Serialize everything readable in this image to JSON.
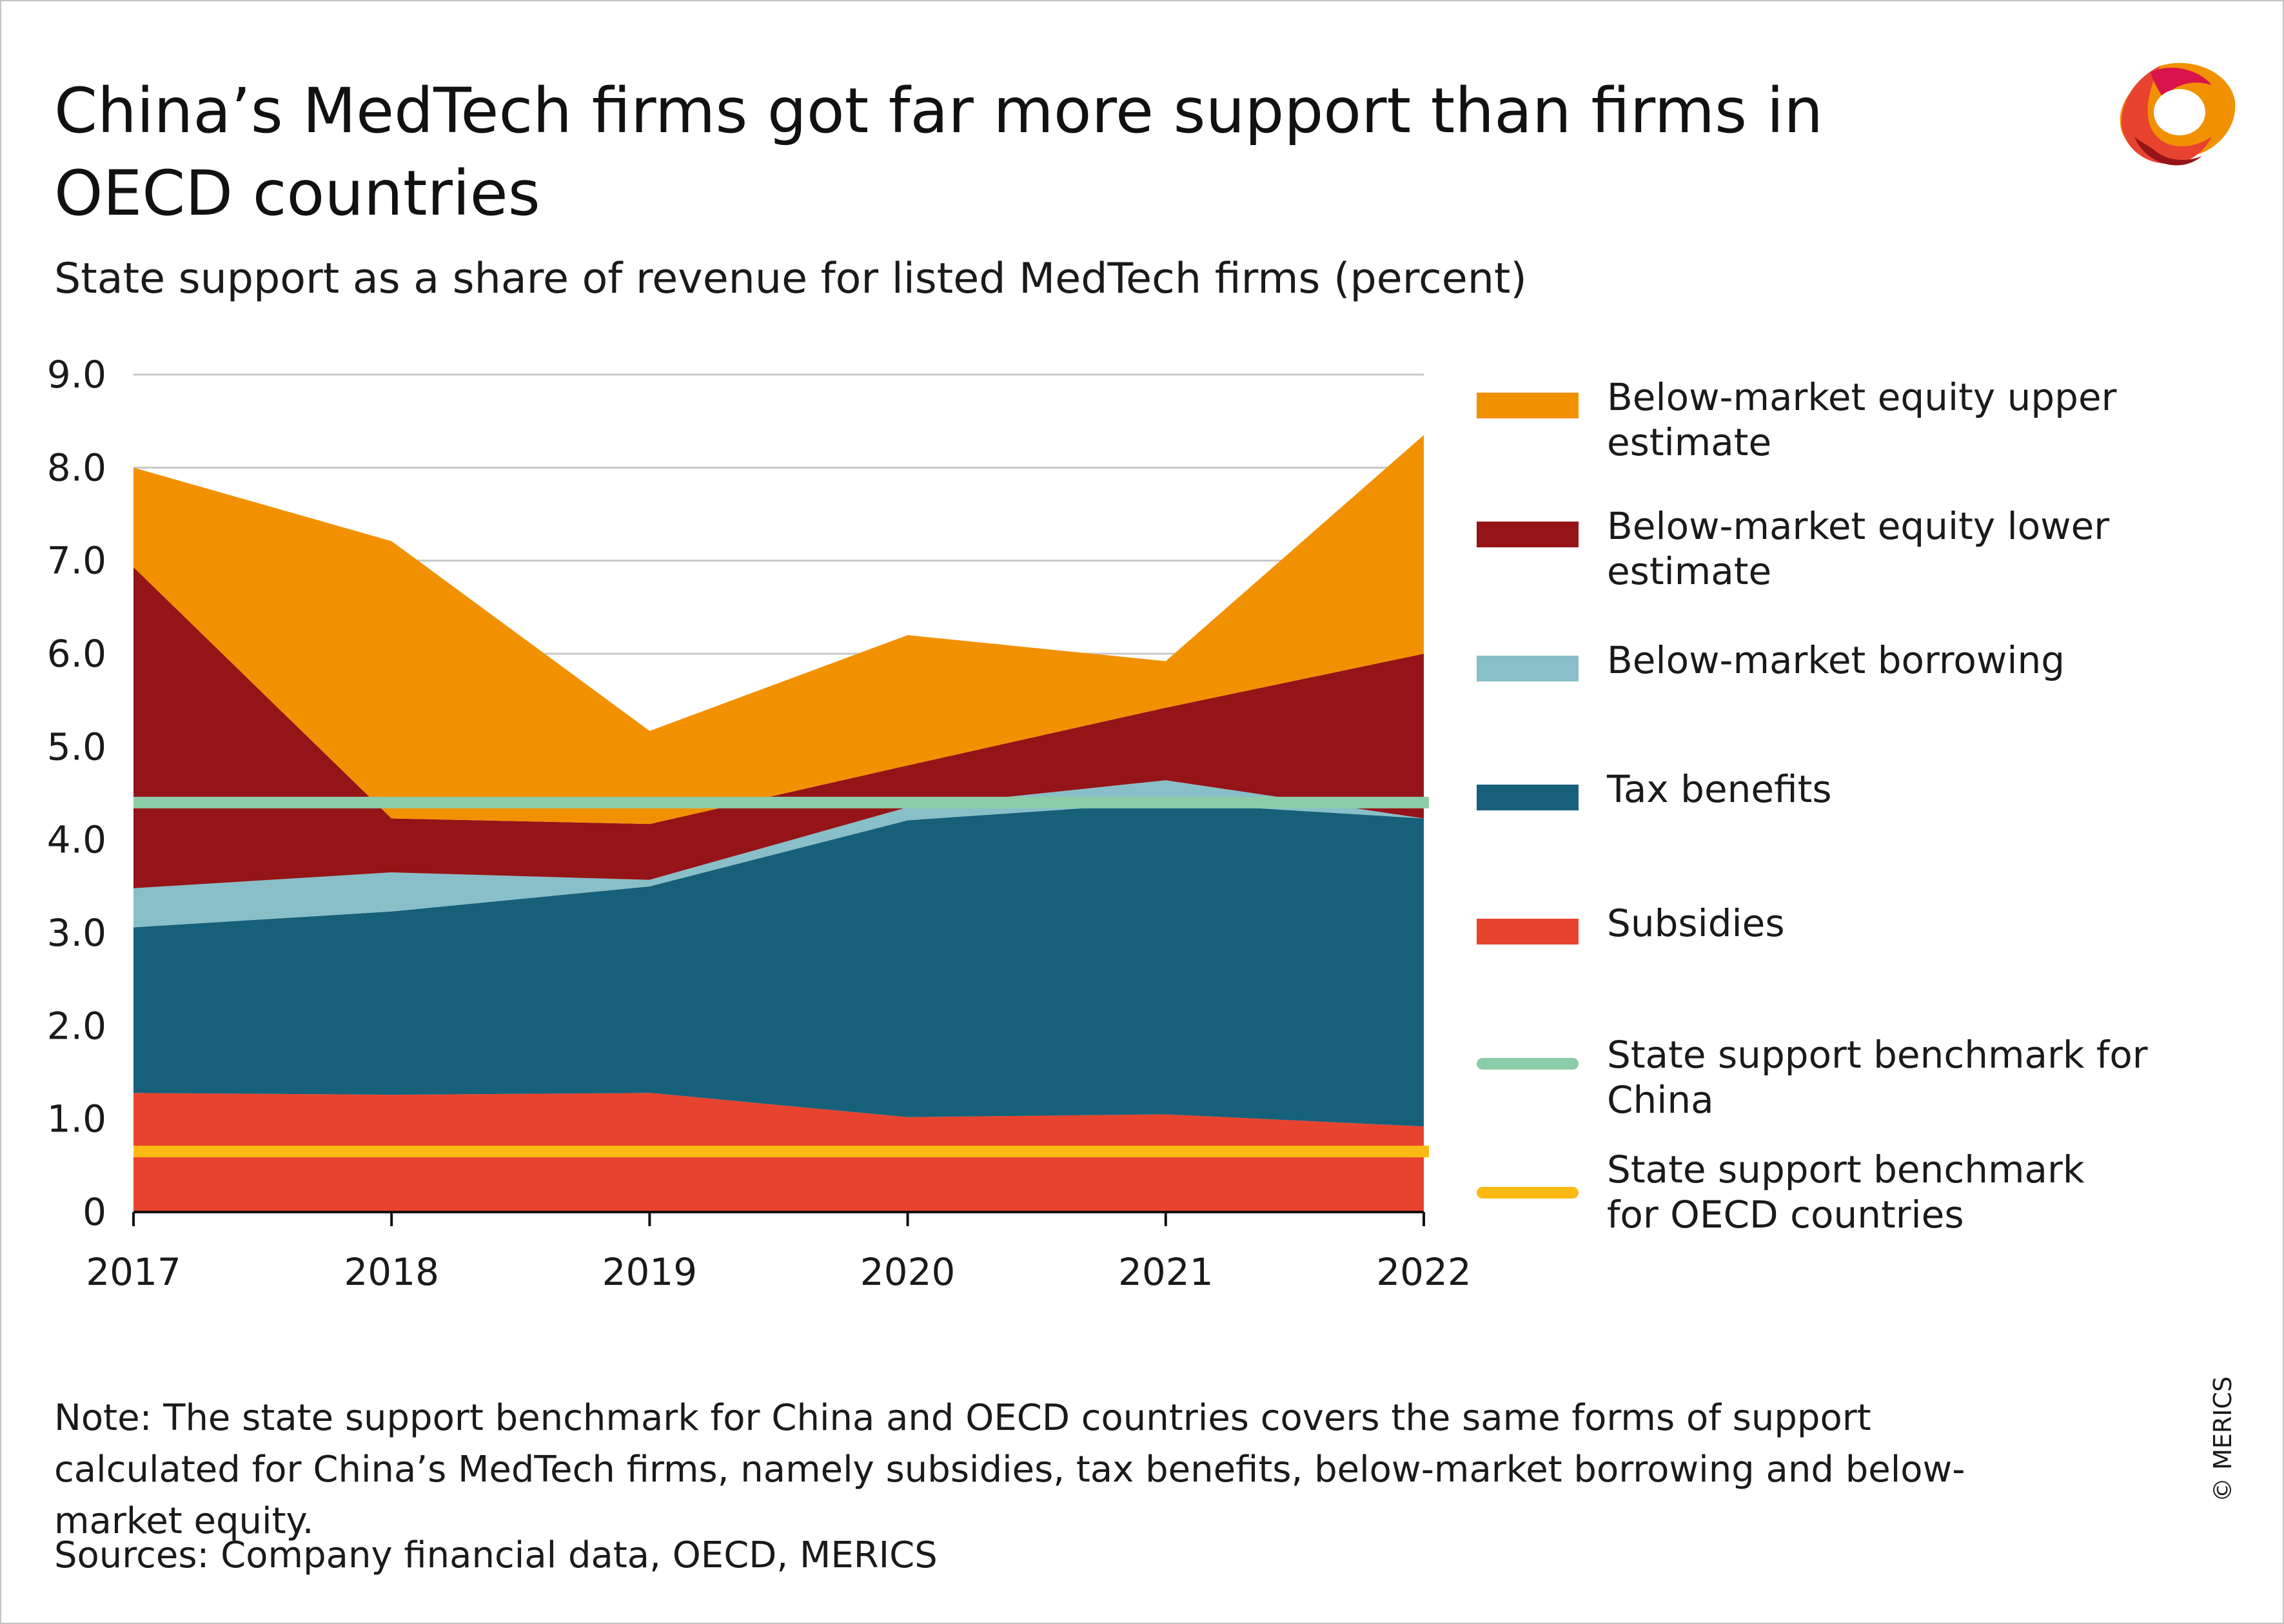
{
  "title": "China’s MedTech firms got far more support than firms in OECD countries",
  "subtitle": "State support as a share of revenue for listed MedTech firms (percent)",
  "note": "Note: The state support benchmark for China and OECD countries covers the same forms of support calculated for China’s MedTech firms, namely subsidies, tax benefits, below-market borrowing and below-market equity.",
  "sources": "Sources: Company financial data, OECD, MERICS",
  "copyright": "© MERICS",
  "colors": {
    "upper_equity": "#f29100",
    "lower_equity": "#951418",
    "borrowing": "#88bfc8",
    "tax": "#17607a",
    "subsidies": "#e8432e",
    "china_benchmark": "#8ccca8",
    "oecd_benchmark": "#fdb913",
    "grid": "#c8c8c8",
    "axis": "#111111"
  },
  "chart_data": {
    "type": "area",
    "stacked": true,
    "x": [
      "2017",
      "2018",
      "2019",
      "2020",
      "2021",
      "2022"
    ],
    "ylim": [
      0,
      9
    ],
    "yticks": [
      "0",
      "1.0",
      "2.0",
      "3.0",
      "4.0",
      "5.0",
      "6.0",
      "7.0",
      "8.0",
      "9.0"
    ],
    "grid": true,
    "legend_position": "right",
    "series": [
      {
        "key": "subsidies",
        "name": "Subsidies",
        "color_key": "subsidies",
        "values": [
          1.28,
          1.26,
          1.28,
          1.02,
          1.05,
          0.92
        ]
      },
      {
        "key": "tax",
        "name": "Tax benefits",
        "color_key": "tax",
        "values": [
          1.78,
          1.97,
          2.22,
          3.19,
          3.35,
          3.31
        ]
      },
      {
        "key": "borrowing",
        "name": "Below-market borrowing",
        "color_key": "borrowing",
        "values": [
          0.42,
          0.42,
          0.07,
          0.14,
          0.24,
          0.0
        ]
      },
      {
        "key": "lower_equity",
        "name": "Below-market equity lower estimate",
        "color_key": "lower_equity",
        "values": [
          3.45,
          0.58,
          0.6,
          0.45,
          0.78,
          1.77
        ]
      },
      {
        "key": "upper_equity",
        "name": "Below-market equity upper estimate",
        "color_key": "upper_equity",
        "values": [
          1.07,
          2.98,
          1.0,
          1.4,
          0.5,
          2.35
        ]
      }
    ],
    "lines": [
      {
        "key": "china_benchmark",
        "name": "State support benchmark for China",
        "color_key": "china_benchmark",
        "value": 4.4
      },
      {
        "key": "oecd_benchmark",
        "name": "State support benchmark for OECD countries",
        "color_key": "oecd_benchmark",
        "value": 0.65
      }
    ],
    "legend": [
      {
        "label": "Below-market equity upper estimate",
        "color_key": "upper_equity",
        "kind": "rect"
      },
      {
        "label": "Below-market equity lower estimate",
        "color_key": "lower_equity",
        "kind": "rect"
      },
      {
        "label": "Below-market borrowing",
        "color_key": "borrowing",
        "kind": "rect"
      },
      {
        "label": "Tax benefits",
        "color_key": "tax",
        "kind": "rect"
      },
      {
        "label": "Subsidies",
        "color_key": "subsidies",
        "kind": "rect"
      },
      {
        "label": "State support benchmark for China",
        "color_key": "china_benchmark",
        "kind": "line"
      },
      {
        "label": "State support benchmark for OECD countries",
        "color_key": "oecd_benchmark",
        "kind": "line"
      }
    ]
  }
}
